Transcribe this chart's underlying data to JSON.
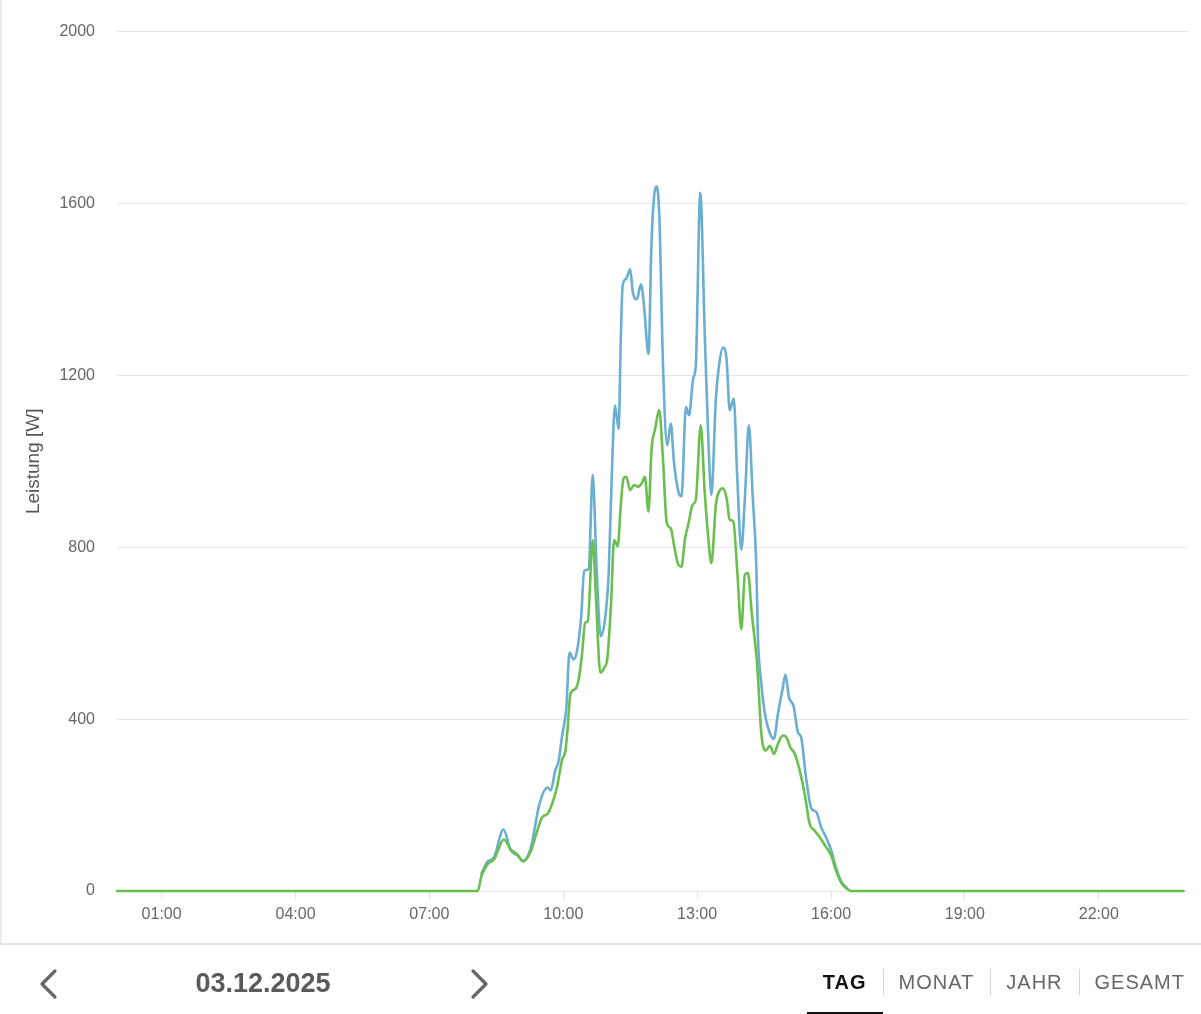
{
  "chart_data": {
    "type": "line",
    "ylabel": "Leistung [W]",
    "annotations": [
      "03.12.2025",
      "TAG",
      "MONAT",
      "JAHR",
      "GESAMT"
    ],
    "xlim": [
      0,
      24
    ],
    "xticks": [
      {
        "value": 1,
        "label": "01:00"
      },
      {
        "value": 4,
        "label": "04:00"
      },
      {
        "value": 7,
        "label": "07:00"
      },
      {
        "value": 10,
        "label": "10:00"
      },
      {
        "value": 13,
        "label": "13:00"
      },
      {
        "value": 16,
        "label": "16:00"
      },
      {
        "value": 19,
        "label": "19:00"
      },
      {
        "value": 22,
        "label": "22:00"
      }
    ],
    "ylim": [
      0,
      2000
    ],
    "yticks": [
      0,
      400,
      800,
      1200,
      1600,
      2000
    ],
    "grid": "y",
    "legend": false,
    "series": [
      {
        "color": "#6aafd2",
        "x": [
          8.17,
          8.3,
          8.45,
          8.66,
          8.82,
          8.97,
          9.1,
          9.27,
          9.47,
          9.65,
          9.72,
          9.82,
          9.9,
          9.97,
          10.07,
          10.14,
          10.23,
          10.31,
          10.4,
          10.47,
          10.57,
          10.66,
          10.75,
          10.84,
          10.94,
          11.02,
          11.09,
          11.16,
          11.24,
          11.29,
          11.33,
          11.41,
          11.5,
          11.56,
          11.65,
          11.74,
          11.81,
          11.91,
          11.98,
          12.08,
          12.15,
          12.24,
          12.33,
          12.41,
          12.48,
          12.58,
          12.65,
          12.75,
          12.82,
          12.91,
          12.97,
          13.07,
          13.17,
          13.25,
          13.32,
          13.42,
          13.49,
          13.58,
          13.66,
          13.73,
          13.82,
          13.9,
          13.99,
          14.07,
          14.16,
          14.24,
          14.33,
          14.36,
          14.44,
          14.51,
          14.61,
          14.72,
          14.81,
          14.92,
          14.98,
          15.06,
          15.16,
          15.26,
          15.33,
          15.44,
          15.56,
          15.67,
          15.78,
          15.89,
          16.0,
          16.12,
          16.23,
          16.37
        ],
        "values": [
          41,
          68,
          79,
          143,
          95,
          83,
          70,
          100,
          204,
          241,
          234,
          280,
          304,
          358,
          427,
          555,
          539,
          559,
          636,
          745,
          750,
          968,
          744,
          593,
          636,
          744,
          976,
          1130,
          1076,
          1285,
          1408,
          1425,
          1447,
          1393,
          1377,
          1412,
          1362,
          1250,
          1516,
          1640,
          1578,
          1207,
          1037,
          1088,
          999,
          929,
          918,
          1126,
          1107,
          1192,
          1223,
          1625,
          1300,
          1053,
          922,
          1146,
          1223,
          1265,
          1238,
          1119,
          1146,
          960,
          794,
          914,
          1084,
          929,
          744,
          597,
          481,
          419,
          373,
          354,
          412,
          473,
          504,
          450,
          431,
          369,
          358,
          265,
          192,
          184,
          148,
          125,
          96,
          52,
          22,
          6
        ]
      },
      {
        "color": "#6abf4f",
        "x": [
          0,
          8.08,
          8.17,
          8.3,
          8.45,
          8.67,
          8.82,
          8.97,
          9.1,
          9.27,
          9.42,
          9.53,
          9.65,
          9.75,
          9.86,
          9.97,
          10.05,
          10.1,
          10.16,
          10.27,
          10.34,
          10.42,
          10.49,
          10.55,
          10.66,
          10.74,
          10.83,
          10.92,
          10.99,
          11.07,
          11.14,
          11.22,
          11.29,
          11.35,
          11.41,
          11.5,
          11.59,
          11.68,
          11.76,
          11.83,
          11.91,
          11.98,
          12.06,
          12.15,
          12.23,
          12.32,
          12.41,
          12.48,
          12.58,
          12.65,
          12.73,
          12.8,
          12.9,
          12.97,
          13.08,
          13.17,
          13.25,
          13.32,
          13.42,
          13.49,
          13.58,
          13.66,
          13.73,
          13.81,
          13.9,
          13.99,
          14.07,
          14.14,
          14.22,
          14.35,
          14.44,
          14.54,
          14.63,
          14.72,
          14.81,
          14.92,
          15.0,
          15.09,
          15.19,
          15.3,
          15.41,
          15.52,
          15.63,
          15.74,
          15.89,
          16.0,
          16.12,
          16.23,
          16.37,
          16.45,
          23.9
        ],
        "values": [
          0,
          0,
          36,
          62,
          74,
          120,
          97,
          85,
          69,
          92,
          141,
          172,
          180,
          203,
          242,
          304,
          327,
          381,
          458,
          470,
          489,
          551,
          624,
          628,
          817,
          667,
          508,
          520,
          543,
          667,
          817,
          802,
          899,
          960,
          964,
          933,
          945,
          941,
          949,
          964,
          883,
          1030,
          1076,
          1119,
          1014,
          856,
          844,
          806,
          759,
          755,
          821,
          852,
          899,
          910,
          1084,
          929,
          821,
          763,
          899,
          929,
          937,
          914,
          864,
          860,
          744,
          609,
          736,
          740,
          651,
          520,
          365,
          327,
          338,
          319,
          342,
          362,
          358,
          334,
          319,
          280,
          226,
          157,
          141,
          126,
          102,
          84,
          45,
          19,
          4,
          0,
          0
        ]
      }
    ]
  }
}
